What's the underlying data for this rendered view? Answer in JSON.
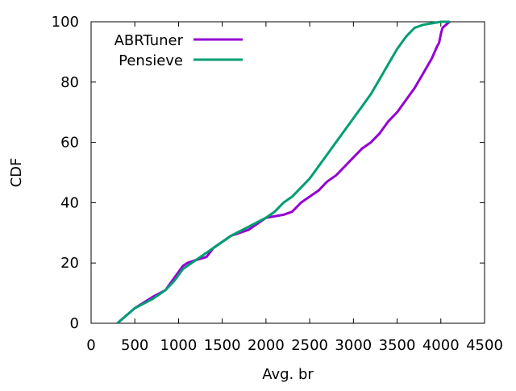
{
  "chart_data": {
    "type": "line",
    "title": "",
    "xlabel": "Avg. br",
    "ylabel": "CDF",
    "xlim": [
      0,
      4500
    ],
    "ylim": [
      0,
      100
    ],
    "xticks": [
      0,
      500,
      1000,
      1500,
      2000,
      2500,
      3000,
      3500,
      4000,
      4500
    ],
    "yticks": [
      0,
      20,
      40,
      60,
      80,
      100
    ],
    "grid": false,
    "legend_position": "top-left",
    "series": [
      {
        "name": "ABRTuner",
        "color": "#9400d3",
        "x": [
          300,
          500,
          720,
          850,
          950,
          1050,
          1100,
          1200,
          1320,
          1400,
          1500,
          1600,
          1800,
          1900,
          2000,
          2200,
          2300,
          2400,
          2500,
          2600,
          2700,
          2800,
          2900,
          3000,
          3100,
          3200,
          3300,
          3400,
          3500,
          3600,
          3700,
          3800,
          3900,
          3960,
          3980,
          4000,
          4020,
          4100
        ],
        "y": [
          0,
          5,
          9,
          11,
          15,
          19,
          20,
          21,
          22,
          25,
          27,
          29,
          31,
          33,
          35,
          36,
          37,
          40,
          42,
          44,
          47,
          49,
          52,
          55,
          58,
          60,
          63,
          67,
          70,
          74,
          78,
          83,
          88,
          92,
          93,
          96,
          98,
          100
        ]
      },
      {
        "name": "Pensieve",
        "color": "#009e73",
        "x": [
          300,
          500,
          700,
          850,
          950,
          1000,
          1050,
          1200,
          1350,
          1400,
          1500,
          1600,
          1800,
          2000,
          2100,
          2200,
          2300,
          2400,
          2500,
          2600,
          2700,
          2800,
          2900,
          3000,
          3100,
          3200,
          3300,
          3400,
          3500,
          3600,
          3700,
          3800,
          3900,
          4000,
          4100
        ],
        "y": [
          0,
          5,
          8,
          11,
          14,
          16,
          18,
          21,
          24,
          25,
          27,
          29,
          32,
          35,
          37,
          40,
          42,
          45,
          48,
          52,
          56,
          60,
          64,
          68,
          72,
          76,
          81,
          86,
          91,
          95,
          98,
          99,
          99.5,
          100,
          100
        ]
      }
    ]
  }
}
